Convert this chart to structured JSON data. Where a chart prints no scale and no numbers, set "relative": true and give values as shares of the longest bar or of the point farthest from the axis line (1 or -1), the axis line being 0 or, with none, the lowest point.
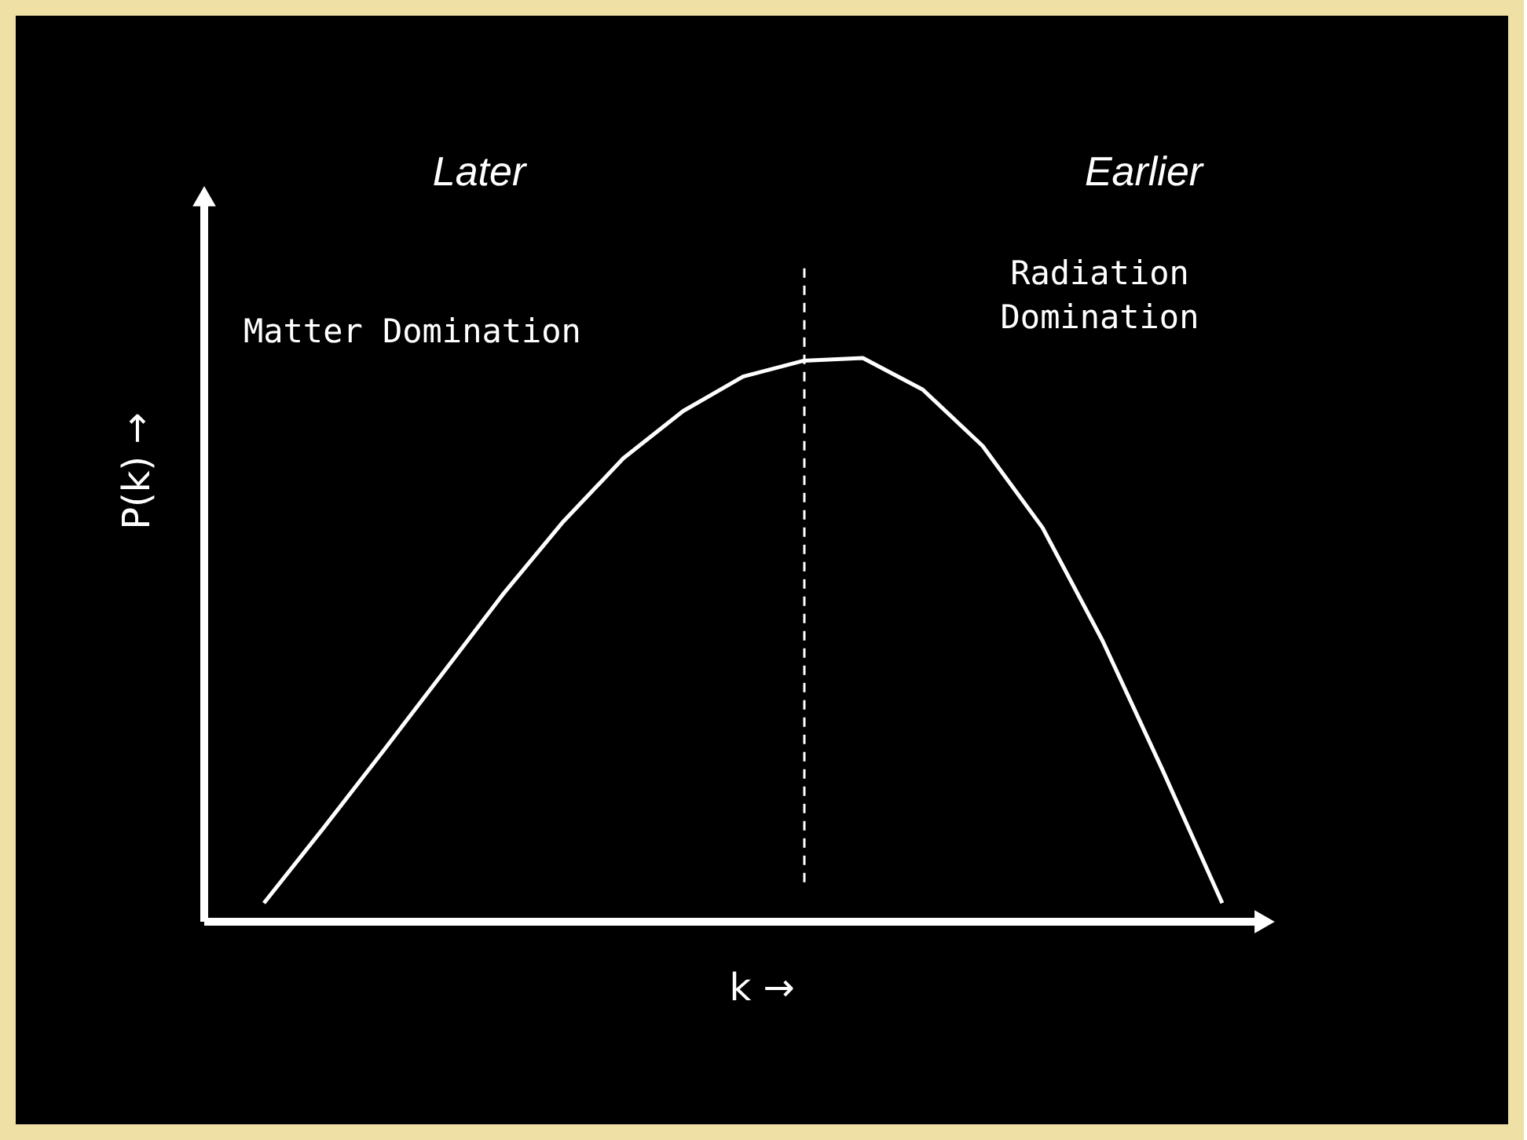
{
  "chart_data": {
    "type": "line",
    "relative": true,
    "xlabel": "k →",
    "ylabel": "P(k) →",
    "categories": [
      null,
      null,
      null,
      null,
      null,
      null,
      null,
      null,
      null,
      null,
      null,
      null,
      null,
      null,
      null,
      null,
      null
    ],
    "values": [
      0.033,
      0.167,
      0.304,
      0.443,
      0.582,
      0.71,
      0.822,
      0.906,
      0.967,
      0.995,
      1,
      0.944,
      0.844,
      0.699,
      0.499,
      0.27,
      0.033
    ],
    "color": "#ffffff",
    "line_style": "solid",
    "annotations": [
      "Later",
      "Earlier",
      "Matter Domination",
      "Radiation\nDomination"
    ]
  }
}
